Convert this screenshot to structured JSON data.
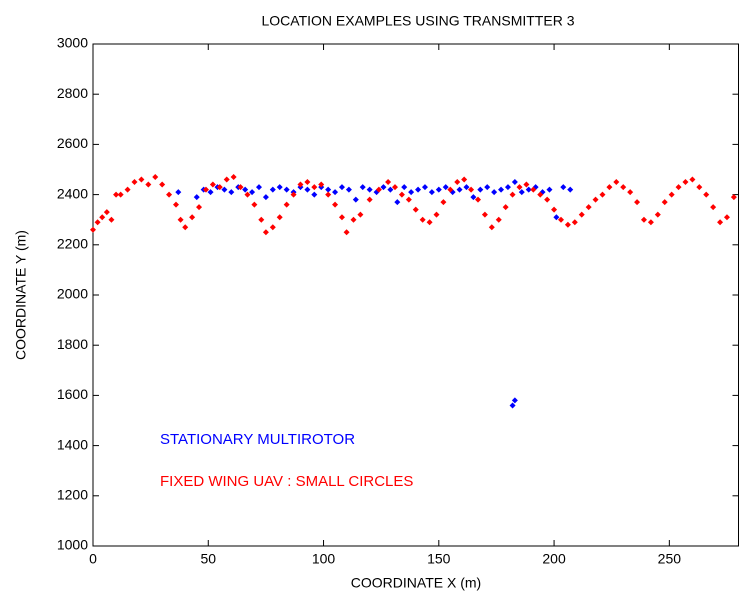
{
  "chart_data": {
    "type": "scatter",
    "title": "LOCATION EXAMPLES USING TRANSMITTER 3",
    "x_label": "COORDINATE X (m)",
    "y_label": "COORDINATE Y (m)",
    "xlim": [
      0,
      280
    ],
    "ylim": [
      1000,
      3000
    ],
    "xticks": [
      0,
      50,
      100,
      150,
      200,
      250
    ],
    "yticks": [
      1000,
      1200,
      1400,
      1600,
      1800,
      2000,
      2200,
      2400,
      2600,
      2800,
      3000
    ],
    "grid": false,
    "series": [
      {
        "name": "STATIONARY MULTIROTOR",
        "color": "#0000ff",
        "x": [
          37,
          45,
          48,
          51,
          54,
          57,
          60,
          63,
          66,
          69,
          72,
          75,
          78,
          81,
          84,
          87,
          90,
          93,
          96,
          99,
          102,
          105,
          108,
          111,
          114,
          117,
          120,
          123,
          126,
          129,
          132,
          135,
          138,
          141,
          144,
          147,
          150,
          153,
          156,
          159,
          162,
          165,
          168,
          171,
          174,
          177,
          180,
          183,
          186,
          189,
          192,
          195,
          198,
          201,
          204,
          207,
          182,
          183
        ],
        "values": [
          2410,
          2390,
          2420,
          2410,
          2430,
          2420,
          2410,
          2430,
          2420,
          2410,
          2430,
          2390,
          2420,
          2430,
          2420,
          2410,
          2430,
          2420,
          2400,
          2430,
          2420,
          2410,
          2430,
          2420,
          2380,
          2430,
          2420,
          2410,
          2430,
          2420,
          2370,
          2430,
          2410,
          2420,
          2430,
          2410,
          2420,
          2430,
          2410,
          2420,
          2430,
          2390,
          2420,
          2430,
          2410,
          2420,
          2430,
          2450,
          2410,
          2420,
          2430,
          2410,
          2420,
          2310,
          2430,
          2420,
          1560,
          1580
        ]
      },
      {
        "name": "FIXED WING UAV : SMALL CIRCLES",
        "color": "#ff0000",
        "x": [
          0,
          2,
          4,
          6,
          8,
          10,
          12,
          15,
          18,
          21,
          24,
          27,
          30,
          33,
          36,
          38,
          40,
          43,
          46,
          49,
          52,
          55,
          58,
          61,
          64,
          67,
          70,
          73,
          75,
          78,
          81,
          84,
          87,
          90,
          93,
          96,
          99,
          102,
          105,
          108,
          110,
          113,
          116,
          120,
          124,
          128,
          131,
          134,
          137,
          140,
          143,
          146,
          149,
          152,
          155,
          158,
          161,
          164,
          167,
          170,
          173,
          176,
          179,
          182,
          185,
          188,
          191,
          194,
          197,
          200,
          203,
          206,
          209,
          212,
          215,
          218,
          221,
          224,
          227,
          230,
          233,
          236,
          239,
          242,
          245,
          248,
          251,
          254,
          257,
          260,
          263,
          266,
          269,
          272,
          275,
          278
        ],
        "values": [
          2260,
          2290,
          2310,
          2330,
          2300,
          2400,
          2400,
          2420,
          2450,
          2460,
          2440,
          2470,
          2440,
          2400,
          2360,
          2300,
          2270,
          2310,
          2350,
          2420,
          2440,
          2430,
          2460,
          2470,
          2430,
          2400,
          2360,
          2300,
          2250,
          2270,
          2310,
          2360,
          2400,
          2440,
          2450,
          2430,
          2440,
          2400,
          2360,
          2310,
          2250,
          2300,
          2320,
          2380,
          2420,
          2450,
          2430,
          2400,
          2380,
          2340,
          2300,
          2290,
          2320,
          2370,
          2420,
          2450,
          2460,
          2420,
          2380,
          2320,
          2270,
          2300,
          2350,
          2400,
          2430,
          2440,
          2420,
          2400,
          2380,
          2340,
          2300,
          2280,
          2290,
          2320,
          2350,
          2380,
          2400,
          2430,
          2450,
          2430,
          2410,
          2370,
          2300,
          2290,
          2320,
          2370,
          2400,
          2430,
          2450,
          2460,
          2430,
          2400,
          2350,
          2290,
          2310,
          2390
        ]
      }
    ]
  }
}
